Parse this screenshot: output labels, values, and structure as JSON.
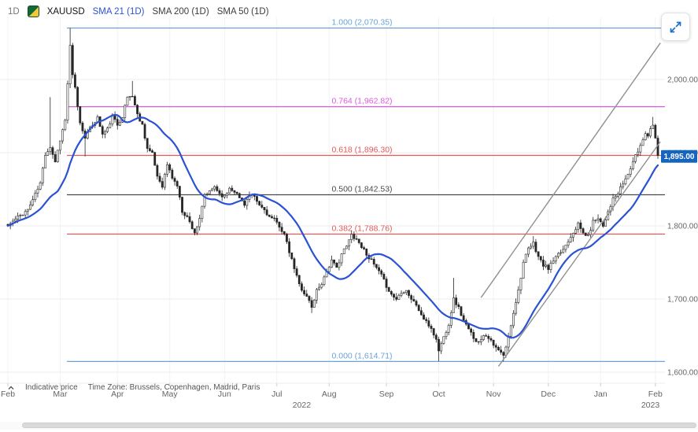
{
  "header": {
    "timeframe": "1D",
    "symbol": "XAUUSD",
    "indicators": [
      {
        "label": "SMA 21 (1D)"
      },
      {
        "label": "SMA 200 (1D)"
      },
      {
        "label": "SMA 50 (1D)"
      }
    ]
  },
  "footer": {
    "indicative_price": "Indicative price",
    "timezone": "Time Zone: Brussels, Copenhagen, Madrid, Paris"
  },
  "price_tag": {
    "value": 1895.0,
    "label": "1,895.00",
    "color": "#1565c0"
  },
  "chart_data": {
    "type": "candlestick",
    "title": "XAUUSD 1D candlestick chart with SMA overlay and Fibonacci retracement",
    "instrument": "XAUUSD",
    "interval": "1D",
    "x_range": {
      "start": "Feb 2022",
      "end": "Feb 2023"
    },
    "y_axis": {
      "min": 1585,
      "max": 2085,
      "ticks": [
        2000,
        1900,
        1800,
        1700,
        1600
      ],
      "labels": [
        "2,000.00",
        "1,900.00",
        "1,800.00",
        "1,700.00",
        "1,600.00"
      ]
    },
    "months": [
      {
        "label": "Feb",
        "day": 0
      },
      {
        "label": "Mar",
        "day": 21
      },
      {
        "label": "Apr",
        "day": 44
      },
      {
        "label": "May",
        "day": 65
      },
      {
        "label": "Jun",
        "day": 87
      },
      {
        "label": "Jul",
        "day": 108
      },
      {
        "label": "Aug",
        "day": 129
      },
      {
        "label": "Sep",
        "day": 152
      },
      {
        "label": "Oct",
        "day": 173
      },
      {
        "label": "Nov",
        "day": 195
      },
      {
        "label": "Dec",
        "day": 217
      },
      {
        "label": "Jan",
        "day": 238
      },
      {
        "label": "Feb",
        "day": 260
      }
    ],
    "years": [
      {
        "label": "2022",
        "day": 118
      },
      {
        "label": "2023",
        "day": 258
      }
    ],
    "fib_levels": [
      {
        "ratio": "1.000",
        "price": 2070.35,
        "label": "1.000 (2,070.35)",
        "color": "#6aa3d8"
      },
      {
        "ratio": "0.764",
        "price": 1962.82,
        "label": "0.764 (1,962.82)",
        "color": "#de5ade"
      },
      {
        "ratio": "0.618",
        "price": 1896.3,
        "label": "0.618 (1,896.30)",
        "color": "#e05a5a"
      },
      {
        "ratio": "0.500",
        "price": 1842.53,
        "label": "0.500 (1,842.53)",
        "color": "#4a4a4a"
      },
      {
        "ratio": "0.382",
        "price": 1788.76,
        "label": "0.382 (1,788.76)",
        "color": "#e05a5a"
      },
      {
        "ratio": "0.000",
        "price": 1614.71,
        "label": "0.000 (1,614.71)",
        "color": "#6aa3d8"
      }
    ],
    "channel": [
      {
        "d1": 190,
        "p1": 1702,
        "d2": 262,
        "p2": 2050
      },
      {
        "d1": 197,
        "p1": 1608,
        "d2": 262,
        "p2": 1915
      }
    ],
    "candle_count": 262,
    "sma_period": 21,
    "price_path_anchors": [
      [
        0,
        1800
      ],
      [
        4,
        1812
      ],
      [
        8,
        1822
      ],
      [
        11,
        1843
      ],
      [
        13,
        1858
      ],
      [
        15,
        1898
      ],
      [
        17,
        1908
      ],
      [
        19,
        1888
      ],
      [
        21,
        1918
      ],
      [
        23,
        1944
      ],
      [
        25,
        2045
      ],
      [
        26,
        2005
      ],
      [
        27,
        1988
      ],
      [
        29,
        1940
      ],
      [
        31,
        1922
      ],
      [
        34,
        1938
      ],
      [
        36,
        1948
      ],
      [
        38,
        1925
      ],
      [
        40,
        1932
      ],
      [
        42,
        1950
      ],
      [
        44,
        1938
      ],
      [
        46,
        1950
      ],
      [
        48,
        1976
      ],
      [
        50,
        1978
      ],
      [
        52,
        1952
      ],
      [
        54,
        1938
      ],
      [
        56,
        1906
      ],
      [
        58,
        1898
      ],
      [
        60,
        1868
      ],
      [
        62,
        1855
      ],
      [
        64,
        1884
      ],
      [
        66,
        1866
      ],
      [
        68,
        1855
      ],
      [
        70,
        1820
      ],
      [
        72,
        1812
      ],
      [
        75,
        1791
      ],
      [
        77,
        1808
      ],
      [
        79,
        1842
      ],
      [
        81,
        1846
      ],
      [
        83,
        1854
      ],
      [
        85,
        1844
      ],
      [
        87,
        1840
      ],
      [
        89,
        1852
      ],
      [
        91,
        1848
      ],
      [
        93,
        1838
      ],
      [
        95,
        1830
      ],
      [
        97,
        1842
      ],
      [
        99,
        1838
      ],
      [
        101,
        1828
      ],
      [
        103,
        1822
      ],
      [
        105,
        1812
      ],
      [
        107,
        1808
      ],
      [
        109,
        1800
      ],
      [
        111,
        1788
      ],
      [
        113,
        1764
      ],
      [
        115,
        1742
      ],
      [
        117,
        1720
      ],
      [
        119,
        1708
      ],
      [
        121,
        1698
      ],
      [
        122,
        1688
      ],
      [
        124,
        1712
      ],
      [
        126,
        1722
      ],
      [
        128,
        1738
      ],
      [
        130,
        1752
      ],
      [
        132,
        1742
      ],
      [
        134,
        1762
      ],
      [
        136,
        1772
      ],
      [
        138,
        1788
      ],
      [
        140,
        1782
      ],
      [
        142,
        1772
      ],
      [
        144,
        1762
      ],
      [
        146,
        1752
      ],
      [
        148,
        1742
      ],
      [
        150,
        1732
      ],
      [
        152,
        1718
      ],
      [
        154,
        1706
      ],
      [
        156,
        1700
      ],
      [
        158,
        1710
      ],
      [
        160,
        1712
      ],
      [
        162,
        1700
      ],
      [
        164,
        1692
      ],
      [
        166,
        1678
      ],
      [
        168,
        1668
      ],
      [
        170,
        1660
      ],
      [
        172,
        1644
      ],
      [
        173,
        1630
      ],
      [
        175,
        1648
      ],
      [
        177,
        1666
      ],
      [
        179,
        1700
      ],
      [
        181,
        1688
      ],
      [
        183,
        1670
      ],
      [
        185,
        1658
      ],
      [
        187,
        1648
      ],
      [
        189,
        1640
      ],
      [
        191,
        1652
      ],
      [
        193,
        1648
      ],
      [
        195,
        1636
      ],
      [
        197,
        1630
      ],
      [
        199,
        1622
      ],
      [
        201,
        1648
      ],
      [
        203,
        1682
      ],
      [
        205,
        1712
      ],
      [
        207,
        1750
      ],
      [
        209,
        1768
      ],
      [
        211,
        1776
      ],
      [
        213,
        1758
      ],
      [
        215,
        1746
      ],
      [
        217,
        1742
      ],
      [
        219,
        1752
      ],
      [
        221,
        1760
      ],
      [
        223,
        1768
      ],
      [
        225,
        1780
      ],
      [
        227,
        1792
      ],
      [
        229,
        1802
      ],
      [
        231,
        1790
      ],
      [
        233,
        1786
      ],
      [
        235,
        1806
      ],
      [
        237,
        1812
      ],
      [
        239,
        1800
      ],
      [
        241,
        1820
      ],
      [
        243,
        1836
      ],
      [
        245,
        1844
      ],
      [
        247,
        1858
      ],
      [
        249,
        1870
      ],
      [
        251,
        1888
      ],
      [
        253,
        1902
      ],
      [
        255,
        1918
      ],
      [
        256,
        1928
      ],
      [
        257,
        1924
      ],
      [
        258,
        1932
      ],
      [
        259,
        1940
      ],
      [
        260,
        1922
      ],
      [
        261,
        1895
      ]
    ],
    "wick_overrides": [
      {
        "day": 17,
        "high": 1976
      },
      {
        "day": 25,
        "high": 2070.35
      },
      {
        "day": 31,
        "low": 1895
      },
      {
        "day": 50,
        "high": 1998
      },
      {
        "day": 75,
        "low": 1787
      },
      {
        "day": 122,
        "low": 1681
      },
      {
        "day": 173,
        "low": 1615
      },
      {
        "day": 179,
        "high": 1729
      },
      {
        "day": 199,
        "low": 1614.71
      },
      {
        "day": 211,
        "high": 1786
      },
      {
        "day": 259,
        "high": 1949
      }
    ],
    "colors": {
      "candle": "#262626",
      "candle_up_fill": "#ffffff",
      "sma21": "#2a52d4",
      "channel": "#909090",
      "grid": "#ededed",
      "axis_text": "#666666"
    }
  }
}
